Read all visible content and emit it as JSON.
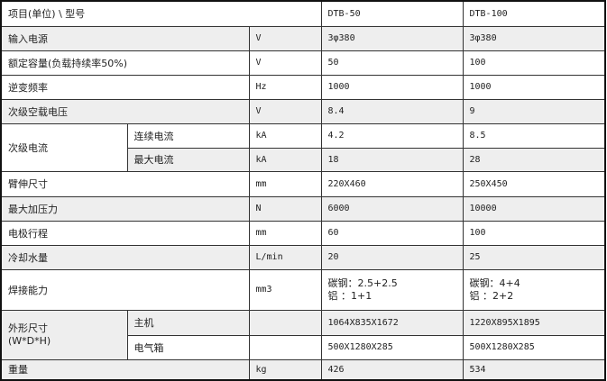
{
  "header": {
    "item": "项目(单位) \\ 型号",
    "models": [
      "DTB-50",
      "DTB-100"
    ]
  },
  "rows": {
    "input_power": {
      "label": "输入电源",
      "unit": "V",
      "v1": "3φ380",
      "v2": "3φ380"
    },
    "rated_capacity": {
      "label": "额定容量(负载持续率50%)",
      "unit": "V",
      "v1": "50",
      "v2": "100"
    },
    "inverter_freq": {
      "label": "逆变频率",
      "unit": "Hz",
      "v1": "1000",
      "v2": "1000"
    },
    "secondary_noload_voltage": {
      "label": "次级空载电压",
      "unit": "V",
      "v1": "8.4",
      "v2": "9"
    },
    "secondary_current": {
      "label": "次级电流",
      "continuous": {
        "label": "连续电流",
        "unit": "kA",
        "v1": "4.2",
        "v2": "8.5"
      },
      "max": {
        "label": "最大电流",
        "unit": "kA",
        "v1": "18",
        "v2": "28"
      }
    },
    "arm_size": {
      "label": "臂伸尺寸",
      "unit": "mm",
      "v1": "220X460",
      "v2": "250X450"
    },
    "max_pressure": {
      "label": "最大加压力",
      "unit": "N",
      "v1": "6000",
      "v2": "10000"
    },
    "electrode_stroke": {
      "label": "电极行程",
      "unit": "mm",
      "v1": "60",
      "v2": "100"
    },
    "cooling_water": {
      "label": "冷却水量",
      "unit": "L/min",
      "v1": "20",
      "v2": "25"
    },
    "welding_capacity": {
      "label": "焊接能力",
      "unit": "mm3",
      "v1_line1": "碳钢：2.5+2.5",
      "v1_line2": "铝 ：1+1",
      "v2_line1": "碳钢：4+4",
      "v2_line2": "铝 ：2+2"
    },
    "dimensions": {
      "label_line1": "外形尺寸",
      "label_line2": "(W*D*H)",
      "main": {
        "label": "主机",
        "unit": "",
        "v1": "1064X835X1672",
        "v2": "1220X895X1895"
      },
      "cabinet": {
        "label": "电气箱",
        "unit": "",
        "v1": "500X1280X285",
        "v2": "500X1280X285"
      }
    },
    "weight": {
      "label": "重量",
      "unit": "kg",
      "v1": "426",
      "v2": "534"
    }
  }
}
